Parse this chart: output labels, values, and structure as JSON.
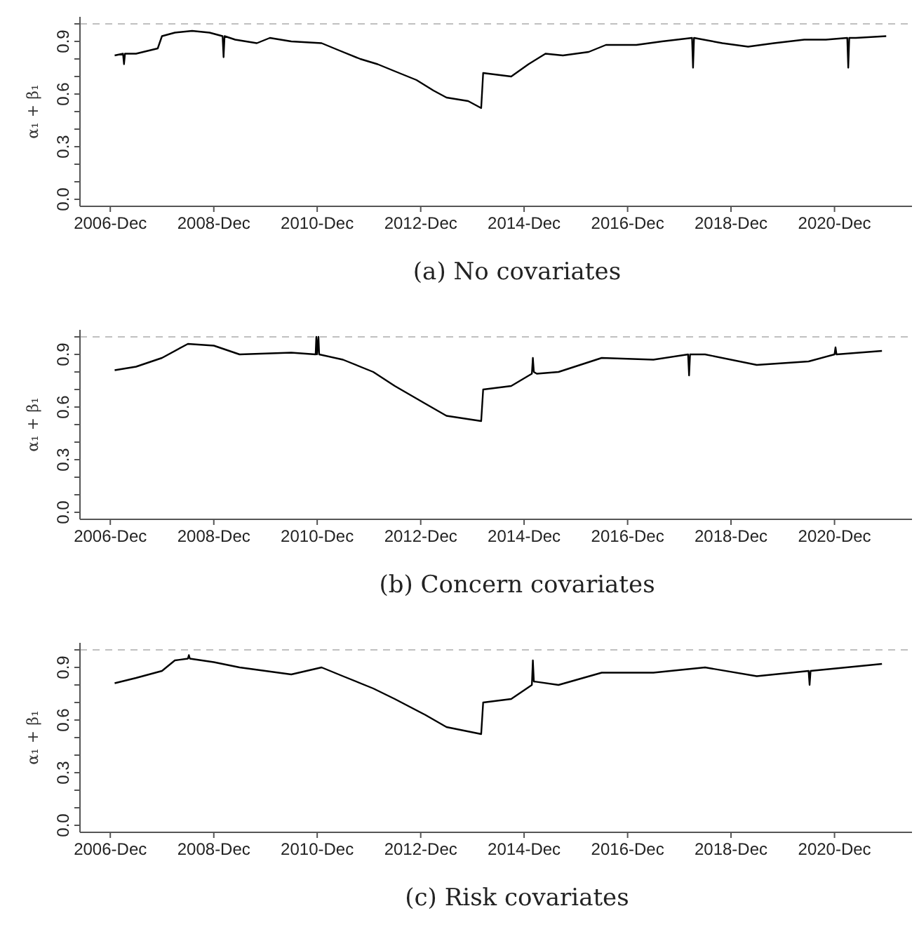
{
  "chart_data": [
    {
      "type": "line",
      "title": "(a) No covariates",
      "ylabel": "α₁ + β₁",
      "xlim": [
        "2006-05-01",
        "2022-06-01"
      ],
      "ylim": [
        -0.04,
        1.04
      ],
      "xticks": [
        {
          "value": "2006-12-01",
          "label": "2006-Dec"
        },
        {
          "value": "2008-12-01",
          "label": "2008-Dec"
        },
        {
          "value": "2010-12-01",
          "label": "2010-Dec"
        },
        {
          "value": "2012-12-01",
          "label": "2012-Dec"
        },
        {
          "value": "2014-12-01",
          "label": "2014-Dec"
        },
        {
          "value": "2016-12-01",
          "label": "2016-Dec"
        },
        {
          "value": "2018-12-01",
          "label": "2018-Dec"
        },
        {
          "value": "2020-12-01",
          "label": "2020-Dec"
        }
      ],
      "yticks": [
        {
          "value": 0,
          "label": "0.0"
        },
        {
          "value": 0.1,
          "label": null
        },
        {
          "value": 0.2,
          "label": null
        },
        {
          "value": 0.3,
          "label": "0.3"
        },
        {
          "value": 0.4,
          "label": null
        },
        {
          "value": 0.5,
          "label": null
        },
        {
          "value": 0.6,
          "label": "0.6"
        },
        {
          "value": 0.7,
          "label": null
        },
        {
          "value": 0.8,
          "label": null
        },
        {
          "value": 0.9,
          "label": "0.9"
        },
        {
          "value": 1.0,
          "label": null
        }
      ],
      "ref_lines": [
        {
          "axis": "y",
          "value": 1,
          "color": "#c0c0c0",
          "line_style": "dashed"
        }
      ],
      "marker": "none",
      "line_style": "solid",
      "series": [
        {
          "color": "#000000",
          "x": [
            "2007-01-01",
            "2007-03-01",
            "2007-03-08",
            "2007-03-15",
            "2007-06-01",
            "2007-11-01",
            "2007-12-01",
            "2008-03-01",
            "2008-07-01",
            "2008-11-01",
            "2009-02-01",
            "2009-02-08",
            "2009-02-15",
            "2009-05-01",
            "2009-10-01",
            "2010-01-01",
            "2010-06-01",
            "2011-01-01",
            "2011-05-01",
            "2011-10-01",
            "2012-02-01",
            "2012-06-01",
            "2012-11-01",
            "2013-03-01",
            "2013-06-01",
            "2013-11-01",
            "2014-02-01",
            "2014-02-15",
            "2014-09-01",
            "2015-01-01",
            "2015-05-01",
            "2015-09-01",
            "2016-03-01",
            "2016-07-01",
            "2017-02-01",
            "2017-08-01",
            "2018-03-01",
            "2018-03-08",
            "2018-03-15",
            "2018-10-01",
            "2019-04-01",
            "2019-10-01",
            "2020-05-01",
            "2020-10-01",
            "2021-03-01",
            "2021-03-08",
            "2021-03-15",
            "2021-05-01",
            "2021-12-01"
          ],
          "values": [
            0.82,
            0.83,
            0.77,
            0.83,
            0.83,
            0.86,
            0.93,
            0.95,
            0.96,
            0.95,
            0.93,
            0.81,
            0.93,
            0.91,
            0.89,
            0.92,
            0.9,
            0.89,
            0.85,
            0.8,
            0.77,
            0.73,
            0.68,
            0.62,
            0.58,
            0.56,
            0.52,
            0.72,
            0.7,
            0.77,
            0.83,
            0.82,
            0.84,
            0.88,
            0.88,
            0.9,
            0.92,
            0.75,
            0.92,
            0.89,
            0.87,
            0.89,
            0.91,
            0.91,
            0.92,
            0.75,
            0.92,
            0.92,
            0.93
          ]
        }
      ]
    },
    {
      "type": "line",
      "title": "(b) Concern covariates",
      "ylabel": "α₁ + β₁",
      "xlim": [
        "2006-05-01",
        "2022-06-01"
      ],
      "ylim": [
        -0.04,
        1.04
      ],
      "xticks": [
        {
          "value": "2006-12-01",
          "label": "2006-Dec"
        },
        {
          "value": "2008-12-01",
          "label": "2008-Dec"
        },
        {
          "value": "2010-12-01",
          "label": "2010-Dec"
        },
        {
          "value": "2012-12-01",
          "label": "2012-Dec"
        },
        {
          "value": "2014-12-01",
          "label": "2014-Dec"
        },
        {
          "value": "2016-12-01",
          "label": "2016-Dec"
        },
        {
          "value": "2018-12-01",
          "label": "2018-Dec"
        },
        {
          "value": "2020-12-01",
          "label": "2020-Dec"
        }
      ],
      "yticks": [
        {
          "value": 0,
          "label": "0.0"
        },
        {
          "value": 0.1,
          "label": null
        },
        {
          "value": 0.2,
          "label": null
        },
        {
          "value": 0.3,
          "label": "0.3"
        },
        {
          "value": 0.4,
          "label": null
        },
        {
          "value": 0.5,
          "label": null
        },
        {
          "value": 0.6,
          "label": "0.6"
        },
        {
          "value": 0.7,
          "label": null
        },
        {
          "value": 0.8,
          "label": null
        },
        {
          "value": 0.9,
          "label": "0.9"
        },
        {
          "value": 1.0,
          "label": null
        }
      ],
      "ref_lines": [
        {
          "axis": "y",
          "value": 1,
          "color": "#c0c0c0",
          "line_style": "dashed"
        }
      ],
      "marker": "none",
      "line_style": "solid",
      "series": [
        {
          "color": "#000000",
          "x": [
            "2007-01-01",
            "2007-06-01",
            "2007-12-01",
            "2008-06-01",
            "2008-12-01",
            "2009-06-01",
            "2010-06-01",
            "2010-11-20",
            "2010-11-25",
            "2010-11-30",
            "2010-12-10",
            "2010-12-15",
            "2011-06-01",
            "2012-01-01",
            "2012-06-01",
            "2013-01-01",
            "2013-06-01",
            "2014-02-01",
            "2014-02-15",
            "2014-09-01",
            "2015-01-25",
            "2015-02-01",
            "2015-02-08",
            "2015-03-01",
            "2015-08-01",
            "2016-06-01",
            "2017-06-01",
            "2018-02-01",
            "2018-02-08",
            "2018-02-15",
            "2018-06-01",
            "2019-06-01",
            "2020-06-01",
            "2020-12-01",
            "2020-12-08",
            "2020-12-15",
            "2021-11-01"
          ],
          "values": [
            0.81,
            0.83,
            0.88,
            0.96,
            0.95,
            0.9,
            0.91,
            0.9,
            1.0,
            0.9,
            1.0,
            0.9,
            0.87,
            0.8,
            0.72,
            0.62,
            0.55,
            0.52,
            0.7,
            0.72,
            0.79,
            0.88,
            0.8,
            0.79,
            0.8,
            0.88,
            0.87,
            0.9,
            0.78,
            0.9,
            0.9,
            0.84,
            0.86,
            0.9,
            0.94,
            0.9,
            0.92
          ]
        }
      ]
    },
    {
      "type": "line",
      "title": "(c) Risk covariates",
      "ylabel": "α₁ + β₁",
      "xlim": [
        "2006-05-01",
        "2022-06-01"
      ],
      "ylim": [
        -0.04,
        1.04
      ],
      "xticks": [
        {
          "value": "2006-12-01",
          "label": "2006-Dec"
        },
        {
          "value": "2008-12-01",
          "label": "2008-Dec"
        },
        {
          "value": "2010-12-01",
          "label": "2010-Dec"
        },
        {
          "value": "2012-12-01",
          "label": "2012-Dec"
        },
        {
          "value": "2014-12-01",
          "label": "2014-Dec"
        },
        {
          "value": "2016-12-01",
          "label": "2016-Dec"
        },
        {
          "value": "2018-12-01",
          "label": "2018-Dec"
        },
        {
          "value": "2020-12-01",
          "label": "2020-Dec"
        }
      ],
      "yticks": [
        {
          "value": 0,
          "label": "0.0"
        },
        {
          "value": 0.1,
          "label": null
        },
        {
          "value": 0.2,
          "label": null
        },
        {
          "value": 0.3,
          "label": "0.3"
        },
        {
          "value": 0.4,
          "label": null
        },
        {
          "value": 0.5,
          "label": null
        },
        {
          "value": 0.6,
          "label": "0.6"
        },
        {
          "value": 0.7,
          "label": null
        },
        {
          "value": 0.8,
          "label": null
        },
        {
          "value": 0.9,
          "label": "0.9"
        },
        {
          "value": 1.0,
          "label": null
        }
      ],
      "ref_lines": [
        {
          "axis": "y",
          "value": 1,
          "color": "#c0c0c0",
          "line_style": "dashed"
        }
      ],
      "marker": "none",
      "line_style": "solid",
      "series": [
        {
          "color": "#000000",
          "x": [
            "2007-01-01",
            "2007-06-01",
            "2007-12-01",
            "2008-03-01",
            "2008-06-01",
            "2008-06-08",
            "2008-06-15",
            "2008-12-01",
            "2009-06-01",
            "2010-06-01",
            "2011-01-01",
            "2011-06-01",
            "2012-01-01",
            "2012-06-01",
            "2013-01-01",
            "2013-06-01",
            "2014-02-01",
            "2014-02-15",
            "2014-09-01",
            "2015-01-25",
            "2015-02-01",
            "2015-02-08",
            "2015-08-01",
            "2016-06-01",
            "2017-06-01",
            "2018-06-01",
            "2019-06-01",
            "2020-06-01",
            "2020-06-08",
            "2020-06-15",
            "2021-11-01"
          ],
          "values": [
            0.81,
            0.84,
            0.88,
            0.94,
            0.95,
            0.97,
            0.95,
            0.93,
            0.9,
            0.86,
            0.9,
            0.85,
            0.78,
            0.72,
            0.63,
            0.56,
            0.52,
            0.7,
            0.72,
            0.8,
            0.94,
            0.82,
            0.8,
            0.87,
            0.87,
            0.9,
            0.85,
            0.88,
            0.8,
            0.88,
            0.92
          ]
        }
      ]
    }
  ]
}
